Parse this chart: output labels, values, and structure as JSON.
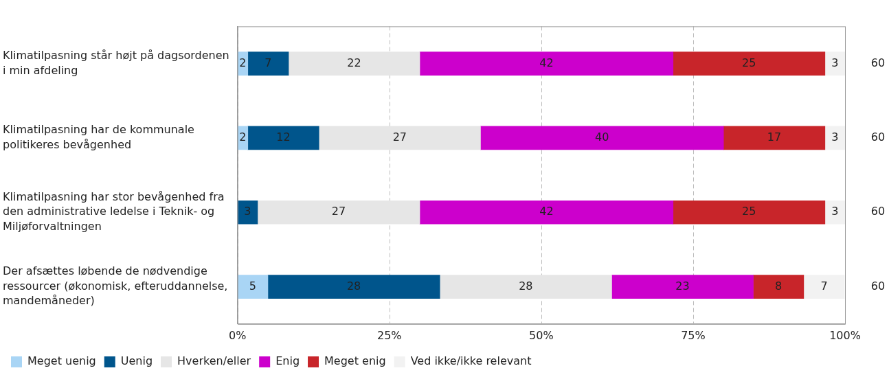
{
  "chart_data": {
    "type": "bar",
    "orientation": "horizontal",
    "stacked": true,
    "categories": [
      "Klimatilpasning står højt på dagsordenen\ni min afdeling",
      "Klimatilpasning har de kommunale\npolitikeres bevågenhed",
      "Klimatilpasning har stor bevågenhed fra\nden administrative ledelse i Teknik- og\nMiljøforvaltningen",
      "Der afsættes løbende de nødvendige\nressourcer (økonomisk, efteruddannelse,\nmandemåneder)"
    ],
    "series": [
      {
        "name": "Meget uenig",
        "color": "#a9d5f5",
        "values": [
          1.7,
          1.7,
          0,
          5
        ],
        "value_labels": [
          "2",
          "2",
          null,
          "5"
        ]
      },
      {
        "name": "Uenig",
        "color": "#00558c",
        "values": [
          6.7,
          11.7,
          3.3,
          28.3
        ],
        "value_labels": [
          "7",
          "12",
          "3",
          "28"
        ]
      },
      {
        "name": "Hverken/eller",
        "color": "#e6e6e6",
        "values": [
          21.6,
          26.6,
          26.7,
          28.3
        ],
        "value_labels": [
          "22",
          "27",
          "27",
          "28"
        ]
      },
      {
        "name": "Enig",
        "color": "#cc00cc",
        "values": [
          41.7,
          40,
          41.7,
          23.3
        ],
        "value_labels": [
          "42",
          "40",
          "42",
          "23"
        ]
      },
      {
        "name": "Meget enig",
        "color": "#c8252a",
        "values": [
          25,
          16.7,
          25,
          8.3
        ],
        "value_labels": [
          "25",
          "17",
          "25",
          "8"
        ]
      },
      {
        "name": "Ved ikke/ikke relevant",
        "color": "#f2f2f2",
        "values": [
          3.3,
          3.3,
          3.3,
          6.7
        ],
        "value_labels": [
          "3",
          "3",
          "3",
          "7"
        ]
      }
    ],
    "xlim": [
      0,
      100
    ],
    "xticks": [
      {
        "value": 0,
        "label": "0%"
      },
      {
        "value": 25,
        "label": "25%"
      },
      {
        "value": 50,
        "label": "50%"
      },
      {
        "value": 75,
        "label": "75%"
      },
      {
        "value": 100,
        "label": "100%"
      }
    ],
    "grid": "x",
    "legend": "bottom",
    "annotations": [
      "60",
      "60",
      "60",
      "60"
    ]
  }
}
